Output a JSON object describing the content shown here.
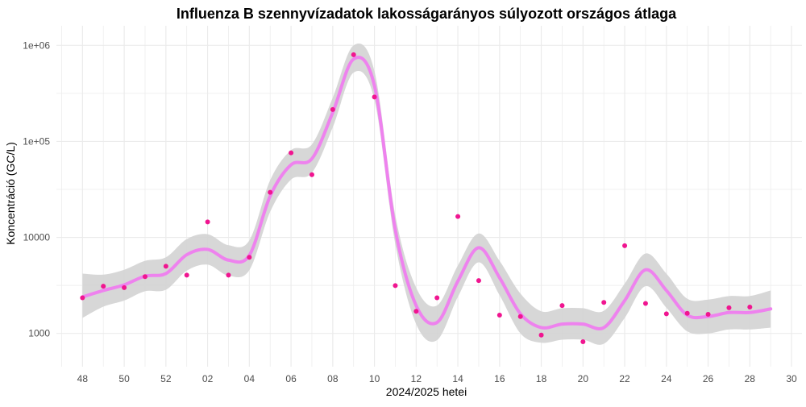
{
  "chart_data": {
    "type": "scatter",
    "title": "Influenza B szennyvízadatok lakosságarányos súlyozott országos átlaga",
    "xlabel": "2024/2025 hetei",
    "ylabel": "Koncentráció (GC/L)",
    "y_scale": "log10",
    "ylim": [
      450,
      1600000
    ],
    "y_ticks": [
      {
        "value": 1000,
        "label": "1000"
      },
      {
        "value": 10000,
        "label": "10000"
      },
      {
        "value": 100000,
        "label": "1e+05"
      },
      {
        "value": 1000000,
        "label": "1e+06"
      }
    ],
    "x_ticks": [
      "48",
      "50",
      "52",
      "02",
      "04",
      "06",
      "08",
      "10",
      "12",
      "14",
      "16",
      "18",
      "20",
      "22",
      "24",
      "26",
      "28",
      "30"
    ],
    "x_axis_note": "x positions are week indices counting from week 48 of 2024 (48→0, 52→4, 01→5, 30→34)",
    "colors": {
      "points": "#f01590",
      "smooth": "#ee82ee",
      "band": "#d3d3d3",
      "grid": "#ebebeb"
    },
    "grid": true,
    "points": [
      {
        "week": "48",
        "y": 2350
      },
      {
        "week": "49",
        "y": 3100
      },
      {
        "week": "50",
        "y": 3000
      },
      {
        "week": "51",
        "y": 3900
      },
      {
        "week": "52",
        "y": 5000
      },
      {
        "week": "01",
        "y": 4050
      },
      {
        "week": "02",
        "y": 14500
      },
      {
        "week": "03",
        "y": 4050
      },
      {
        "week": "04",
        "y": 6200
      },
      {
        "week": "05",
        "y": 29500
      },
      {
        "week": "06",
        "y": 76000
      },
      {
        "week": "07",
        "y": 45000
      },
      {
        "week": "08",
        "y": 215000
      },
      {
        "week": "09",
        "y": 800000
      },
      {
        "week": "10",
        "y": 290000
      },
      {
        "week": "11",
        "y": 3150
      },
      {
        "week": "12",
        "y": 1700
      },
      {
        "week": "13",
        "y": 2350
      },
      {
        "week": "14",
        "y": 16500
      },
      {
        "week": "15",
        "y": 3550
      },
      {
        "week": "16",
        "y": 1550
      },
      {
        "week": "17",
        "y": 1500
      },
      {
        "week": "18",
        "y": 960
      },
      {
        "week": "19",
        "y": 1950
      },
      {
        "week": "20",
        "y": 820
      },
      {
        "week": "21",
        "y": 2100
      },
      {
        "week": "22",
        "y": 8200
      },
      {
        "week": "23",
        "y": 2050
      },
      {
        "week": "24",
        "y": 1600
      },
      {
        "week": "25",
        "y": 1620
      },
      {
        "week": "26",
        "y": 1580
      },
      {
        "week": "27",
        "y": 1850
      },
      {
        "week": "28",
        "y": 1880
      }
    ],
    "smooth": {
      "x": [
        0,
        1,
        2,
        3,
        4,
        5,
        6,
        7,
        8,
        9,
        10,
        11,
        12,
        13,
        14,
        15,
        16,
        17,
        18,
        19,
        20,
        21,
        22,
        23,
        24,
        25,
        26,
        27,
        28,
        29,
        30,
        31,
        32,
        33
      ],
      "y": [
        2400,
        2800,
        3200,
        3950,
        4200,
        6600,
        7500,
        5800,
        6500,
        27000,
        57000,
        66000,
        200000,
        720000,
        380000,
        12000,
        1950,
        1300,
        3500,
        7800,
        3800,
        1600,
        1150,
        1250,
        1250,
        1150,
        2200,
        4600,
        2800,
        1550,
        1500,
        1650,
        1650,
        1800
      ],
      "lower": [
        1450,
        1900,
        2200,
        2750,
        2850,
        4500,
        5200,
        4000,
        4550,
        18500,
        40000,
        47000,
        140000,
        520000,
        270000,
        8500,
        1250,
        850,
        2400,
        5500,
        2500,
        1000,
        800,
        860,
        860,
        780,
        1450,
        3100,
        1850,
        1050,
        1000,
        1100,
        1100,
        1150
      ],
      "upper": [
        4200,
        4100,
        4600,
        5700,
        6200,
        9600,
        10800,
        8300,
        9300,
        39500,
        81000,
        93000,
        285000,
        1000000,
        540000,
        17000,
        3000,
        1950,
        5100,
        11000,
        5700,
        2600,
        1700,
        1830,
        1830,
        1720,
        3300,
        6800,
        4200,
        2300,
        2250,
        2450,
        2450,
        2800
      ]
    }
  }
}
